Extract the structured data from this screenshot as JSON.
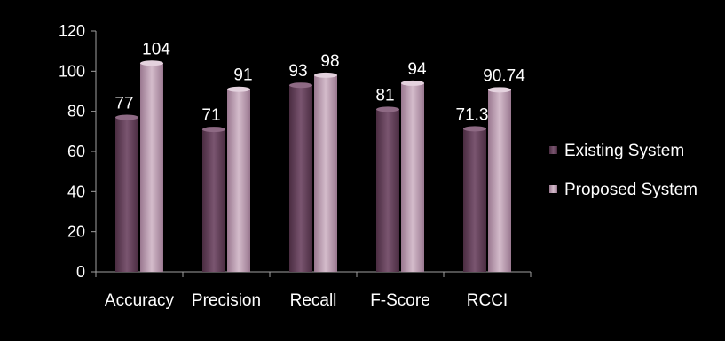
{
  "chart_data": {
    "type": "bar",
    "title": "",
    "xlabel": "",
    "ylabel": "",
    "categories": [
      "Accuracy",
      "Precision",
      "Recall",
      "F-Score",
      "RCCI"
    ],
    "series": [
      {
        "name": "Existing System",
        "values": [
          77,
          71,
          93,
          81,
          71.3
        ],
        "labels": [
          "77",
          "71",
          "93",
          "81",
          "71.3"
        ],
        "color": "#5e3a53"
      },
      {
        "name": "Proposed System",
        "values": [
          104,
          91,
          98,
          94,
          90.74
        ],
        "labels": [
          "104",
          "91",
          "98",
          "94",
          "90.74"
        ],
        "color": "#b493a9"
      }
    ],
    "yticks": [
      "0",
      "20",
      "40",
      "60",
      "80",
      "100",
      "120"
    ],
    "ylim": [
      0,
      120
    ],
    "grid": false,
    "legend": "right"
  }
}
